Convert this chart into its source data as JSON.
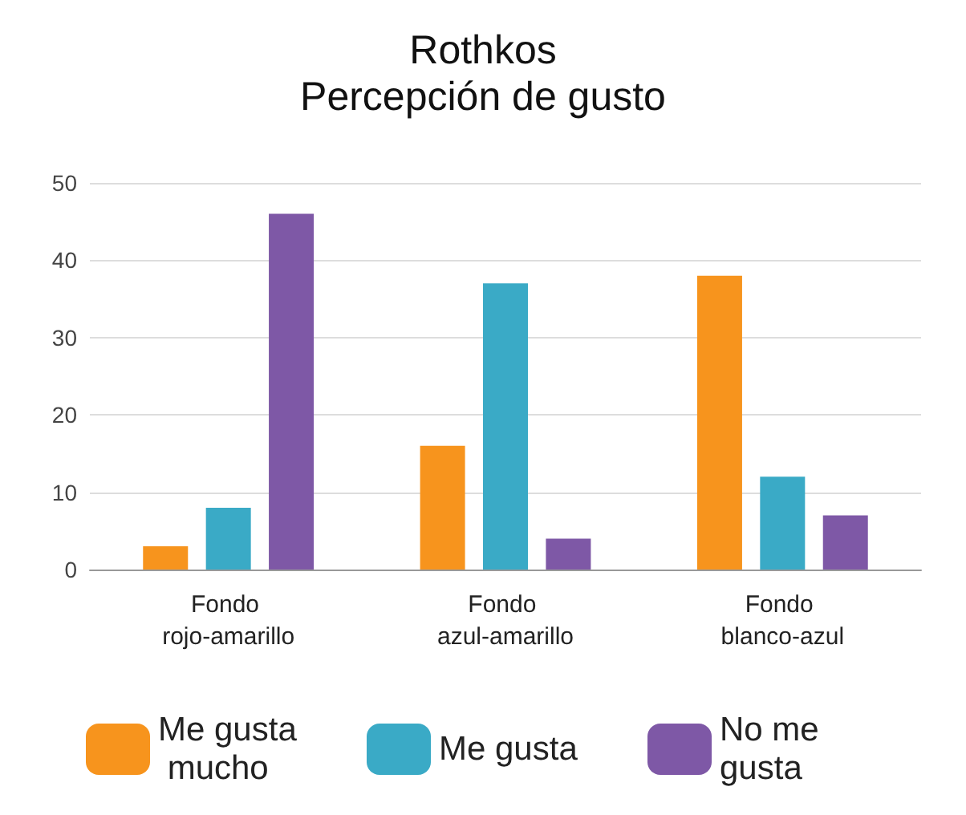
{
  "chart_data": {
    "type": "bar",
    "title": "Rothkos",
    "subtitle": "Percepción de gusto",
    "categories": [
      "Fondo rojo-amarillo",
      "Fondo azul-amarillo",
      "Fondo blanco-azul"
    ],
    "series": [
      {
        "name": "Me gusta mucho",
        "color": "#f7941d",
        "values": [
          3,
          16,
          38
        ]
      },
      {
        "name": "Me gusta",
        "color": "#3aaac6",
        "values": [
          8,
          37,
          12
        ]
      },
      {
        "name": "No me gusta",
        "color": "#7e58a6",
        "values": [
          46,
          4,
          7
        ]
      }
    ],
    "ylim": [
      0,
      50
    ],
    "yticks": [
      0,
      10,
      20,
      30,
      40,
      50
    ],
    "grid": "y",
    "legend": "bottom"
  }
}
